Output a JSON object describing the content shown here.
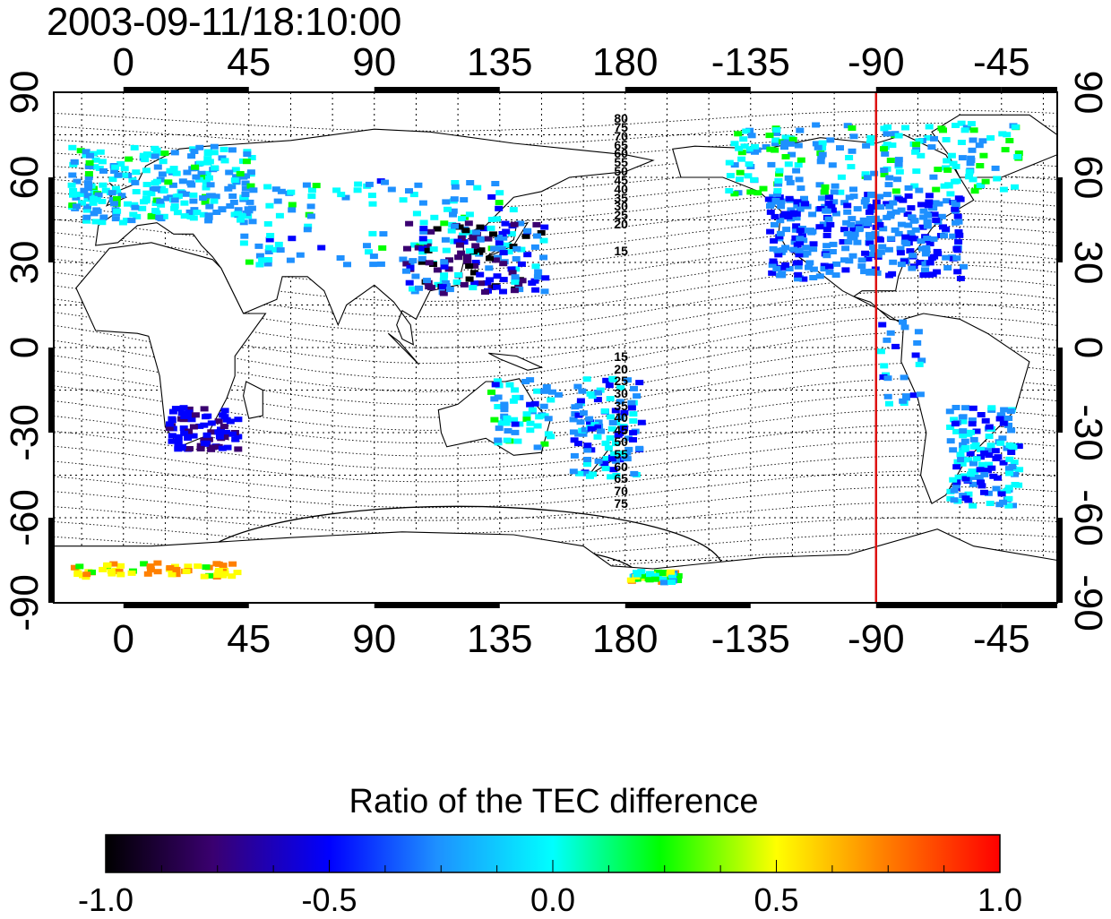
{
  "title": "2003-09-11/18:10:00",
  "map": {
    "lon_range": [
      -25,
      335
    ],
    "lat_range": [
      -90,
      90
    ],
    "top_ticks": [
      "0",
      "45",
      "90",
      "135",
      "180",
      "-135",
      "-90",
      "-45"
    ],
    "bottom_ticks": [
      "0",
      "45",
      "90",
      "135",
      "180",
      "-135",
      "-90",
      "-45"
    ],
    "left_ticks": [
      "90",
      "60",
      "30",
      "0",
      "-30",
      "-60",
      "-90"
    ],
    "right_ticks": [
      "90",
      "60",
      "30",
      "0",
      "-30",
      "-60",
      "-90"
    ],
    "meridian_marker": {
      "longitude": -90,
      "color": "#dd1111"
    },
    "contour_labels_north": [
      "80",
      "75",
      "70",
      "65",
      "60",
      "55",
      "50",
      "45",
      "40",
      "35",
      "30",
      "25",
      "20",
      "15"
    ],
    "contour_labels_south": [
      "15",
      "20",
      "25",
      "30",
      "35",
      "40",
      "45",
      "50",
      "55",
      "60",
      "65",
      "70",
      "75"
    ]
  },
  "colorbar": {
    "title": "Ratio of the TEC difference",
    "min": -1.0,
    "max": 1.0,
    "ticks": [
      "-1.0",
      "-0.5",
      "0.0",
      "0.5",
      "1.0"
    ],
    "colormap": [
      "#000000",
      "#4b0082",
      "#0000ff",
      "#00bfff",
      "#00ffff",
      "#00ff00",
      "#ffff00",
      "#ff8000",
      "#ff0000"
    ]
  }
}
